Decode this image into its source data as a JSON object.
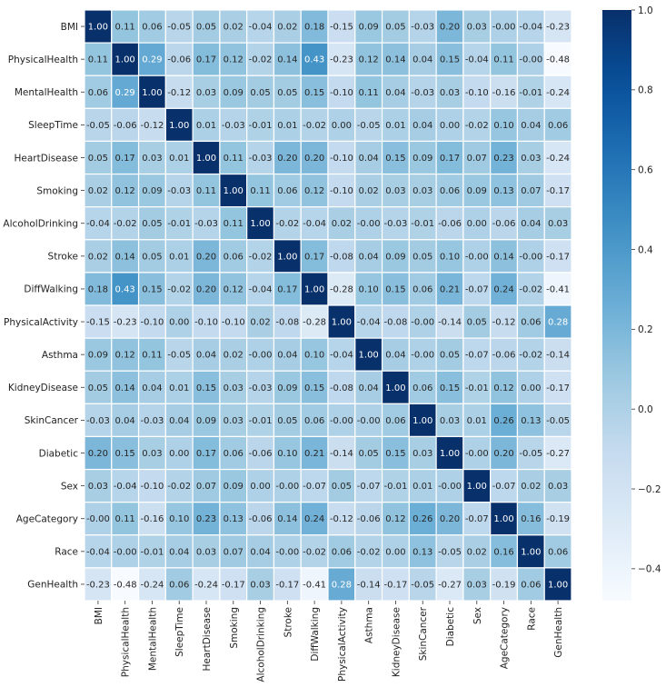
{
  "chart_data": {
    "type": "heatmap",
    "title": "",
    "xlabel": "",
    "ylabel": "",
    "labels": [
      "BMI",
      "PhysicalHealth",
      "MentalHealth",
      "SleepTime",
      "HeartDisease",
      "Smoking",
      "AlcoholDrinking",
      "Stroke",
      "DiffWalking",
      "PhysicalActivity",
      "Asthma",
      "KidneyDisease",
      "SkinCancer",
      "Diabetic",
      "Sex",
      "AgeCategory",
      "Race",
      "GenHealth"
    ],
    "matrix": [
      [
        1.0,
        0.11,
        0.06,
        -0.05,
        0.05,
        0.02,
        -0.04,
        0.02,
        0.18,
        -0.15,
        0.09,
        0.05,
        -0.03,
        0.2,
        0.03,
        -0.0,
        -0.04,
        -0.23
      ],
      [
        0.11,
        1.0,
        0.29,
        -0.06,
        0.17,
        0.12,
        -0.02,
        0.14,
        0.43,
        -0.23,
        0.12,
        0.14,
        0.04,
        0.15,
        -0.04,
        0.11,
        -0.0,
        -0.48
      ],
      [
        0.06,
        0.29,
        1.0,
        -0.12,
        0.03,
        0.09,
        0.05,
        0.05,
        0.15,
        -0.1,
        0.11,
        0.04,
        -0.03,
        0.03,
        -0.1,
        -0.16,
        -0.01,
        -0.24
      ],
      [
        -0.05,
        -0.06,
        -0.12,
        1.0,
        0.01,
        -0.03,
        -0.01,
        0.01,
        -0.02,
        0.0,
        -0.05,
        0.01,
        0.04,
        0.0,
        -0.02,
        0.1,
        0.04,
        0.06
      ],
      [
        0.05,
        0.17,
        0.03,
        0.01,
        1.0,
        0.11,
        -0.03,
        0.2,
        0.2,
        -0.1,
        0.04,
        0.15,
        0.09,
        0.17,
        0.07,
        0.23,
        0.03,
        -0.24
      ],
      [
        0.02,
        0.12,
        0.09,
        -0.03,
        0.11,
        1.0,
        0.11,
        0.06,
        0.12,
        -0.1,
        0.02,
        0.03,
        0.03,
        0.06,
        0.09,
        0.13,
        0.07,
        -0.17
      ],
      [
        -0.04,
        -0.02,
        0.05,
        -0.01,
        -0.03,
        0.11,
        1.0,
        -0.02,
        -0.04,
        0.02,
        -0.0,
        -0.03,
        -0.01,
        -0.06,
        0.0,
        -0.06,
        0.04,
        0.03
      ],
      [
        0.02,
        0.14,
        0.05,
        0.01,
        0.2,
        0.06,
        -0.02,
        1.0,
        0.17,
        -0.08,
        0.04,
        0.09,
        0.05,
        0.1,
        -0.0,
        0.14,
        -0.0,
        -0.17
      ],
      [
        0.18,
        0.43,
        0.15,
        -0.02,
        0.2,
        0.12,
        -0.04,
        0.17,
        1.0,
        -0.28,
        0.1,
        0.15,
        0.06,
        0.21,
        -0.07,
        0.24,
        -0.02,
        -0.41
      ],
      [
        -0.15,
        -0.23,
        -0.1,
        0.0,
        -0.1,
        -0.1,
        0.02,
        -0.08,
        -0.28,
        1.0,
        -0.04,
        -0.08,
        -0.0,
        -0.14,
        0.05,
        -0.12,
        0.06,
        0.28
      ],
      [
        0.09,
        0.12,
        0.11,
        -0.05,
        0.04,
        0.02,
        -0.0,
        0.04,
        0.1,
        -0.04,
        1.0,
        0.04,
        -0.0,
        0.05,
        -0.07,
        -0.06,
        -0.02,
        -0.14
      ],
      [
        0.05,
        0.14,
        0.04,
        0.01,
        0.15,
        0.03,
        -0.03,
        0.09,
        0.15,
        -0.08,
        0.04,
        1.0,
        0.06,
        0.15,
        -0.01,
        0.12,
        0.0,
        -0.17
      ],
      [
        -0.03,
        0.04,
        -0.03,
        0.04,
        0.09,
        0.03,
        -0.01,
        0.05,
        0.06,
        -0.0,
        -0.0,
        0.06,
        1.0,
        0.03,
        0.01,
        0.26,
        0.13,
        -0.05
      ],
      [
        0.2,
        0.15,
        0.03,
        0.0,
        0.17,
        0.06,
        -0.06,
        0.1,
        0.21,
        -0.14,
        0.05,
        0.15,
        0.03,
        1.0,
        -0.0,
        0.2,
        -0.05,
        -0.27
      ],
      [
        0.03,
        -0.04,
        -0.1,
        -0.02,
        0.07,
        0.09,
        0.0,
        -0.0,
        -0.07,
        0.05,
        -0.07,
        -0.01,
        0.01,
        -0.0,
        1.0,
        -0.07,
        0.02,
        0.03
      ],
      [
        -0.0,
        0.11,
        -0.16,
        0.1,
        0.23,
        0.13,
        -0.06,
        0.14,
        0.24,
        -0.12,
        -0.06,
        0.12,
        0.26,
        0.2,
        -0.07,
        1.0,
        0.16,
        -0.19
      ],
      [
        -0.04,
        -0.0,
        -0.01,
        0.04,
        0.03,
        0.07,
        0.04,
        -0.0,
        -0.02,
        0.06,
        -0.02,
        0.0,
        0.13,
        -0.05,
        0.02,
        0.16,
        1.0,
        0.06
      ],
      [
        -0.23,
        -0.48,
        -0.24,
        0.06,
        -0.24,
        -0.17,
        0.03,
        -0.17,
        -0.41,
        0.28,
        -0.14,
        -0.17,
        -0.05,
        -0.27,
        0.03,
        -0.19,
        0.06,
        1.0
      ]
    ],
    "value_format": "2 decimals",
    "colormap": "Blues",
    "vmin": -0.48,
    "vmax": 1.0,
    "colorbar": {
      "ticks": [
        1.0,
        0.8,
        0.6,
        0.4,
        0.2,
        0.0,
        -0.2,
        -0.4
      ],
      "tick_labels": [
        "1.0",
        "0.8",
        "0.6",
        "0.4",
        "0.2",
        "0.0",
        "−0.2",
        "−0.4"
      ],
      "placement": "right"
    },
    "grid": "white cell separators",
    "x_tick_rotation": "vertical"
  }
}
